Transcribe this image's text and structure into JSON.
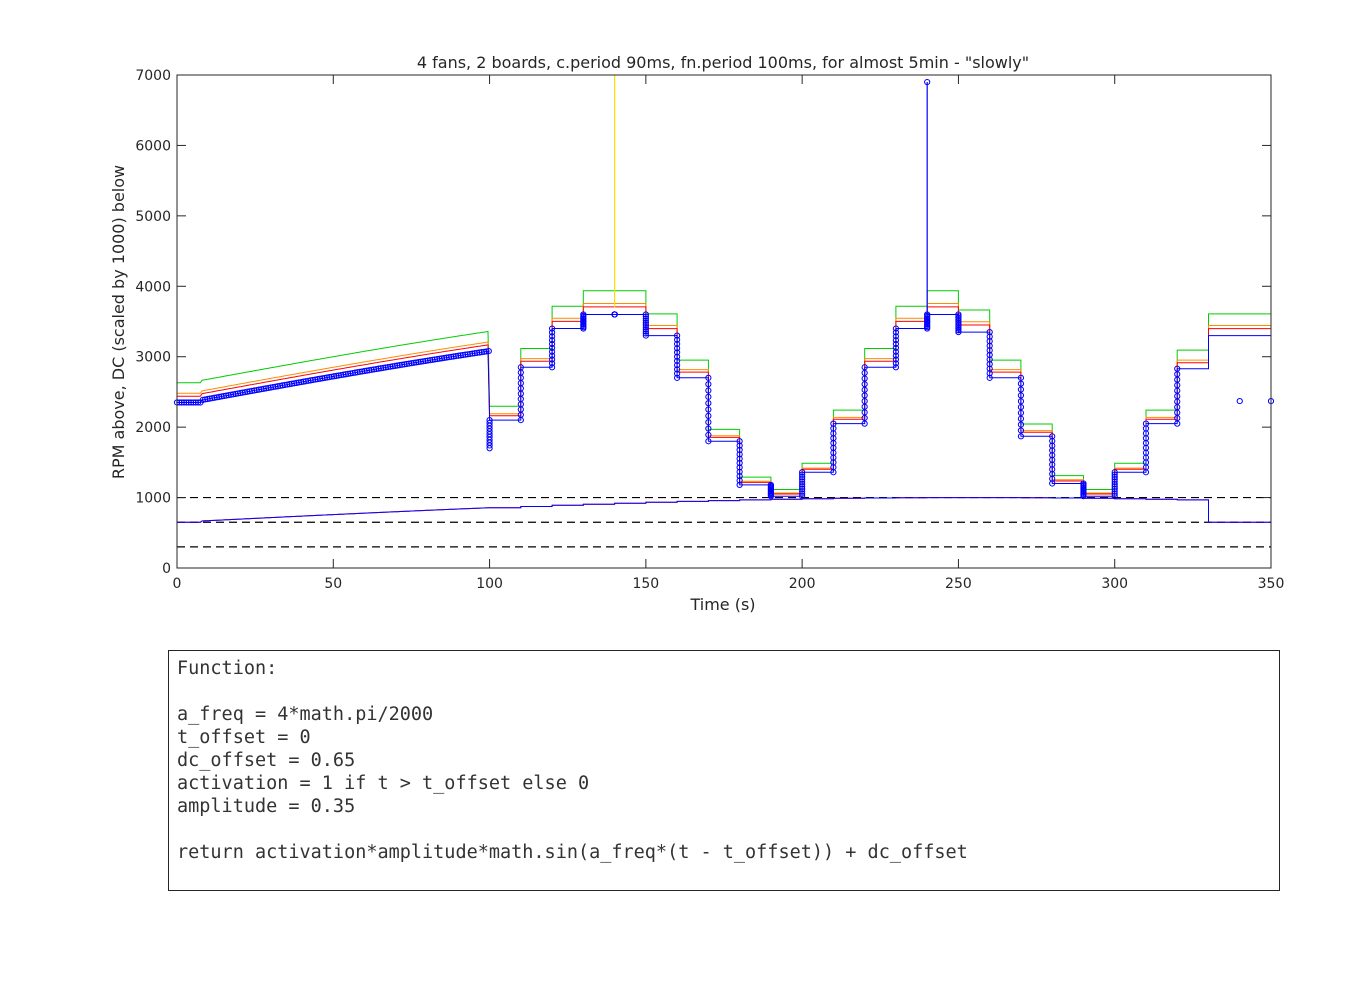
{
  "chart_data": {
    "type": "line",
    "title": "4 fans, 2 boards, c.period 90ms, fn.period 100ms, for almost 5min - \"slowly\"",
    "xlabel": "Time (s)",
    "ylabel": "RPM above, DC (scaled by 1000) below",
    "xlim": [
      0,
      350
    ],
    "ylim": [
      0,
      7000
    ],
    "xticks": [
      0,
      50,
      100,
      150,
      200,
      250,
      300,
      350
    ],
    "yticks": [
      0,
      1000,
      2000,
      3000,
      4000,
      5000,
      6000,
      7000
    ],
    "grid": false,
    "reference_lines": [
      1000,
      650,
      300
    ],
    "dc_function": {
      "dc_offset": 0.65,
      "amplitude": 0.35,
      "a_freq": "4*math.pi/2000",
      "scale": 1000
    },
    "rpm_offsets": {
      "green": 280,
      "orange": 130,
      "red": 90,
      "blue": 0
    },
    "rpm_steps": {
      "t": [
        100,
        110,
        120,
        130,
        140,
        150,
        160,
        170,
        180,
        190,
        200,
        210,
        220,
        230,
        240,
        250,
        260,
        270,
        280,
        290,
        300,
        310,
        320,
        330,
        350
      ],
      "blue": [
        2100,
        2850,
        3400,
        3600,
        3600,
        3300,
        2700,
        1800,
        1180,
        1020,
        1360,
        2050,
        2850,
        3400,
        3600,
        3350,
        2700,
        1870,
        1200,
        1020,
        1360,
        2050,
        2830,
        3300,
        2370
      ]
    },
    "spikes": [
      {
        "series": "yellow",
        "x": 140,
        "y_from": 3700,
        "y_to": 7000
      },
      {
        "series": "blue",
        "x": 240,
        "y_from": 3600,
        "y_to": 6900
      }
    ],
    "series": [
      {
        "color": "#00cc00",
        "values": []
      },
      {
        "color": "#ffd700",
        "values": []
      },
      {
        "color": "#ff0000",
        "values": []
      },
      {
        "color": "#0000ff",
        "values": []
      }
    ]
  },
  "colors": {
    "green": "#00cc00",
    "yellow": "#f5e000",
    "red": "#ff0000",
    "blue": "#0000ff",
    "axis": "#262626"
  },
  "code": {
    "lines": [
      "Function:",
      "",
      "a_freq = 4*math.pi/2000",
      "t_offset = 0",
      "dc_offset = 0.65",
      "activation = 1 if t > t_offset else 0",
      "amplitude = 0.35",
      "",
      "return activation*amplitude*math.sin(a_freq*(t - t_offset)) + dc_offset"
    ]
  }
}
